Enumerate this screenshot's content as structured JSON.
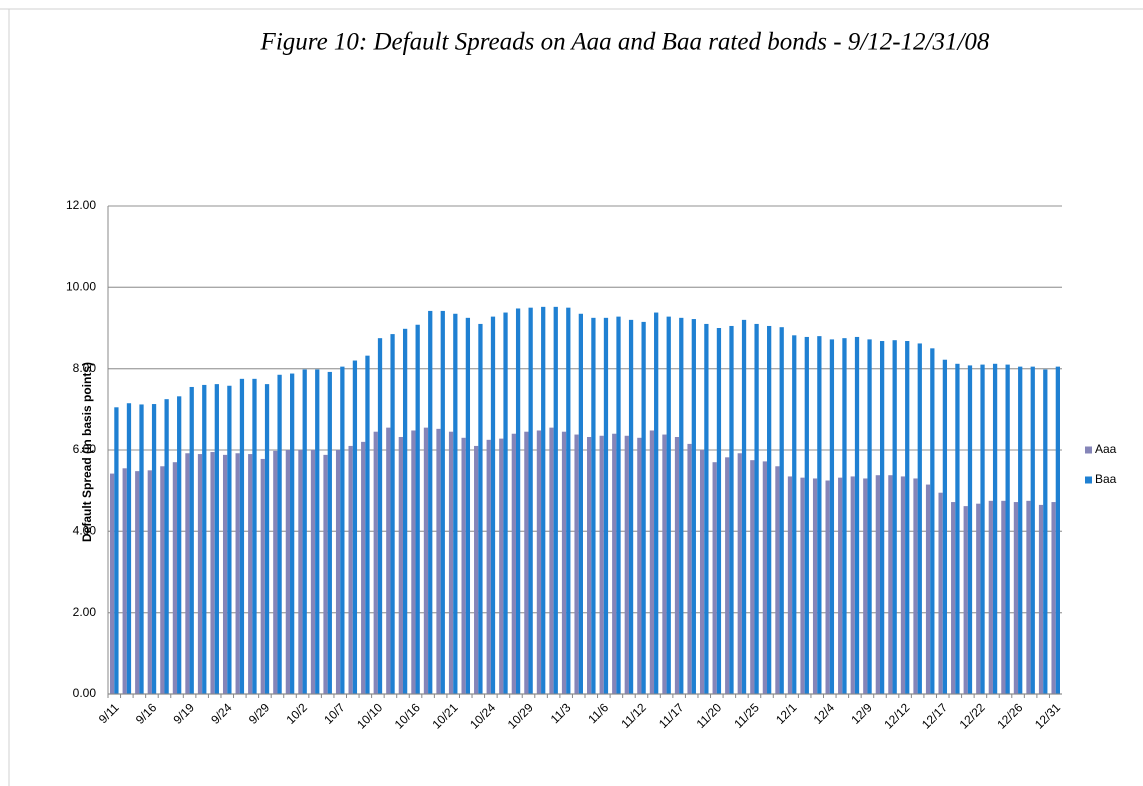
{
  "chart_data": {
    "type": "bar",
    "title": "Figure 10: Default Spreads on Aaa and Baa rated bonds - 9/12-12/31/08",
    "y_label": "Default Spread (in basis points)",
    "categories": [
      "9/11",
      null,
      null,
      "9/16",
      null,
      null,
      "9/19",
      null,
      null,
      "9/24",
      null,
      null,
      "9/29",
      null,
      null,
      "10/2",
      null,
      null,
      "10/7",
      null,
      null,
      "10/10",
      null,
      null,
      "10/16",
      null,
      null,
      "10/21",
      null,
      null,
      "10/24",
      null,
      null,
      "10/29",
      null,
      null,
      "11/3",
      null,
      null,
      "11/6",
      null,
      null,
      "11/12",
      null,
      null,
      "11/17",
      null,
      null,
      "11/20",
      null,
      null,
      "11/25",
      null,
      null,
      "12/1",
      null,
      null,
      "12/4",
      null,
      null,
      "12/9",
      null,
      null,
      "12/12",
      null,
      null,
      "12/17",
      null,
      null,
      "12/22",
      null,
      null,
      "12/26",
      null,
      null,
      "12/31"
    ],
    "series": [
      {
        "name": "Aaa",
        "color": "#8585b8",
        "values": [
          5.42,
          5.55,
          5.48,
          5.5,
          5.6,
          5.7,
          5.92,
          5.9,
          5.95,
          5.88,
          5.92,
          5.9,
          5.78,
          5.98,
          6.0,
          6.0,
          6.0,
          5.88,
          6.0,
          6.1,
          6.2,
          6.45,
          6.55,
          6.32,
          6.48,
          6.55,
          6.52,
          6.45,
          6.3,
          6.1,
          6.25,
          6.28,
          6.4,
          6.45,
          6.48,
          6.55,
          6.45,
          6.38,
          6.32,
          6.35,
          6.4,
          6.35,
          6.3,
          6.48,
          6.38,
          6.32,
          6.15,
          6.0,
          5.7,
          5.82,
          5.92,
          5.75,
          5.72,
          5.6,
          5.35,
          5.32,
          5.3,
          5.25,
          5.32,
          5.35,
          5.3,
          5.38,
          5.38,
          5.35,
          5.3,
          5.15,
          4.95,
          4.72,
          4.62,
          4.68,
          4.75,
          4.75,
          4.72,
          4.75,
          4.65,
          4.72
        ]
      },
      {
        "name": "Baa",
        "color": "#1f80d2",
        "values": [
          7.05,
          7.15,
          7.12,
          7.13,
          7.25,
          7.32,
          7.55,
          7.6,
          7.62,
          7.58,
          7.75,
          7.75,
          7.62,
          7.85,
          7.88,
          7.98,
          7.98,
          7.92,
          8.05,
          8.2,
          8.32,
          8.75,
          8.85,
          8.98,
          9.08,
          9.42,
          9.42,
          9.35,
          9.25,
          9.1,
          9.28,
          9.38,
          9.48,
          9.5,
          9.52,
          9.52,
          9.5,
          9.35,
          9.25,
          9.25,
          9.28,
          9.2,
          9.15,
          9.38,
          9.28,
          9.25,
          9.22,
          9.1,
          9.0,
          9.05,
          9.2,
          9.1,
          9.05,
          9.02,
          8.82,
          8.78,
          8.8,
          8.72,
          8.75,
          8.78,
          8.72,
          8.68,
          8.7,
          8.68,
          8.62,
          8.5,
          8.22,
          8.12,
          8.08,
          8.1,
          8.12,
          8.1,
          8.05,
          8.05,
          7.98,
          8.05
        ]
      }
    ],
    "ylim": [
      0,
      12
    ],
    "yticks": [
      {
        "value": 0,
        "label": "0.00"
      },
      {
        "value": 2,
        "label": "2.00"
      },
      {
        "value": 4,
        "label": "4.00"
      },
      {
        "value": 6,
        "label": "6.00"
      },
      {
        "value": 8,
        "label": "8.00"
      },
      {
        "value": 10,
        "label": "10.00"
      },
      {
        "value": 12,
        "label": "12.00"
      }
    ],
    "grid": true,
    "legend": "right"
  }
}
